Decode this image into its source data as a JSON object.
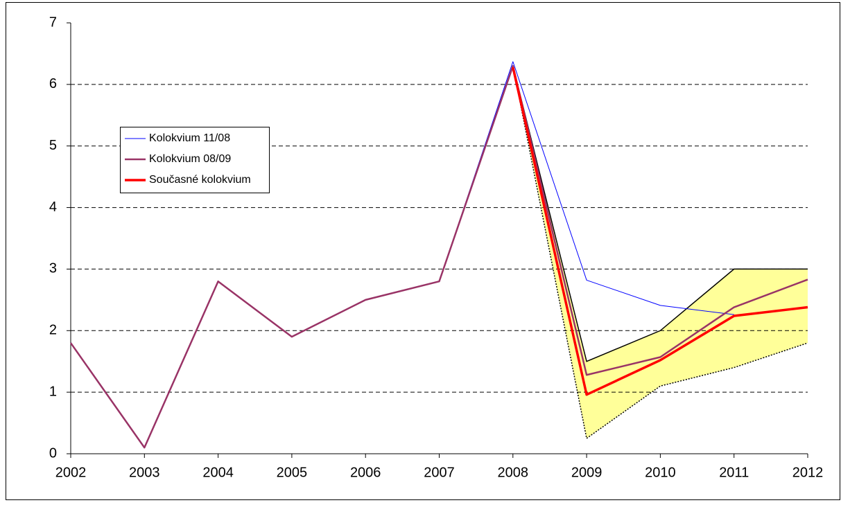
{
  "chart_data": {
    "type": "line",
    "categories": [
      "2002",
      "2003",
      "2004",
      "2005",
      "2006",
      "2007",
      "2008",
      "2009",
      "2010",
      "2011",
      "2012"
    ],
    "series": [
      {
        "name": "Kolokvium 11/08",
        "color": "#0000ff",
        "width": 1,
        "values": [
          1.8,
          0.1,
          2.8,
          1.9,
          2.5,
          2.8,
          6.37,
          2.82,
          2.41,
          2.26,
          null
        ]
      },
      {
        "name": "Kolokvium 08/09",
        "color": "#993366",
        "width": 2.5,
        "values": [
          1.8,
          0.1,
          2.8,
          1.9,
          2.5,
          2.8,
          6.3,
          1.28,
          1.57,
          2.38,
          2.83
        ]
      },
      {
        "name": "Současné kolokvium",
        "color": "#ff0000",
        "width": 3.5,
        "values": [
          null,
          null,
          null,
          null,
          null,
          null,
          6.28,
          0.96,
          1.52,
          2.24,
          2.38
        ]
      }
    ],
    "band": {
      "color": "#ffff99",
      "upper": [
        null,
        null,
        null,
        null,
        null,
        null,
        6.3,
        1.5,
        2.0,
        3.0,
        3.0
      ],
      "lower": [
        null,
        null,
        null,
        null,
        null,
        null,
        6.3,
        0.25,
        1.1,
        1.4,
        1.8
      ]
    },
    "ylim": [
      0,
      7
    ],
    "yticks": [
      0,
      1,
      2,
      3,
      4,
      5,
      6,
      7
    ],
    "grid": true,
    "legend": "upper left"
  }
}
